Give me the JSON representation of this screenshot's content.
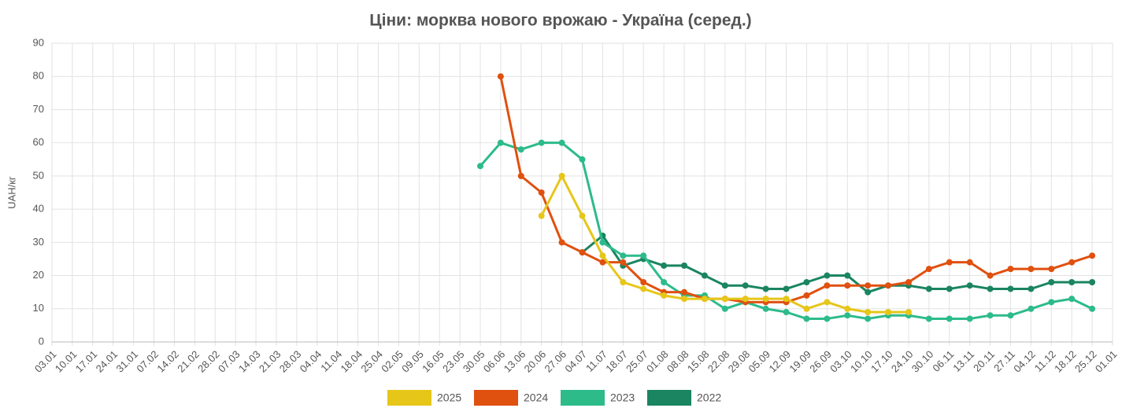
{
  "chart_data": {
    "type": "line",
    "title": "Ціни: морква нового врожаю - Україна (серед.)",
    "y_label": "UAH/кг",
    "categories": [
      "03.01",
      "10.01",
      "17.01",
      "24.01",
      "31.01",
      "07.02",
      "14.02",
      "21.02",
      "28.02",
      "07.03",
      "14.03",
      "21.03",
      "28.03",
      "04.04",
      "11.04",
      "18.04",
      "25.04",
      "02.05",
      "09.05",
      "16.05",
      "23.05",
      "30.05",
      "06.06",
      "13.06",
      "20.06",
      "27.06",
      "04.07",
      "11.07",
      "18.07",
      "25.07",
      "01.08",
      "08.08",
      "15.08",
      "22.08",
      "29.08",
      "05.09",
      "12.09",
      "19.09",
      "26.09",
      "03.10",
      "10.10",
      "17.10",
      "24.10",
      "30.10",
      "06.11",
      "13.11",
      "20.11",
      "27.11",
      "04.12",
      "11.12",
      "18.12",
      "25.12",
      "01.01"
    ],
    "series": [
      {
        "name": "2025",
        "color": "#e6c619",
        "values": [
          null,
          null,
          null,
          null,
          null,
          null,
          null,
          null,
          null,
          null,
          null,
          null,
          null,
          null,
          null,
          null,
          null,
          null,
          null,
          null,
          null,
          null,
          null,
          null,
          38,
          50,
          38,
          26,
          18,
          16,
          14,
          13,
          13,
          13,
          13,
          13,
          13,
          10,
          12,
          10,
          9,
          9,
          9,
          null,
          null,
          null,
          null,
          null,
          null,
          null,
          null,
          null,
          null
        ]
      },
      {
        "name": "2024",
        "color": "#e0500f",
        "values": [
          null,
          null,
          null,
          null,
          null,
          null,
          null,
          null,
          null,
          null,
          null,
          null,
          null,
          null,
          null,
          null,
          null,
          null,
          null,
          null,
          null,
          null,
          80,
          50,
          45,
          30,
          27,
          24,
          24,
          18,
          15,
          15,
          13,
          13,
          12,
          12,
          12,
          14,
          17,
          17,
          17,
          17,
          18,
          22,
          24,
          24,
          20,
          22,
          22,
          22,
          24,
          26,
          null
        ]
      },
      {
        "name": "2023",
        "color": "#2dbb8a",
        "values": [
          null,
          null,
          null,
          null,
          null,
          null,
          null,
          null,
          null,
          null,
          null,
          null,
          null,
          null,
          null,
          null,
          null,
          null,
          null,
          null,
          null,
          53,
          60,
          58,
          60,
          60,
          55,
          30,
          26,
          26,
          18,
          14,
          14,
          10,
          12,
          10,
          9,
          7,
          7,
          8,
          7,
          8,
          8,
          7,
          7,
          7,
          8,
          8,
          10,
          12,
          13,
          10,
          null
        ]
      },
      {
        "name": "2022",
        "color": "#1a8560",
        "values": [
          null,
          null,
          null,
          null,
          null,
          null,
          null,
          null,
          null,
          null,
          null,
          null,
          null,
          null,
          null,
          null,
          null,
          null,
          null,
          null,
          null,
          null,
          null,
          null,
          null,
          null,
          27,
          32,
          23,
          25,
          23,
          23,
          20,
          17,
          17,
          16,
          16,
          18,
          20,
          20,
          15,
          17,
          17,
          16,
          16,
          17,
          16,
          16,
          16,
          18,
          18,
          18,
          null
        ]
      }
    ],
    "ylim": [
      0,
      90
    ],
    "yticks": [
      0,
      10,
      20,
      30,
      40,
      50,
      60,
      70,
      80,
      90
    ],
    "grid": true,
    "legend": "bottom"
  }
}
